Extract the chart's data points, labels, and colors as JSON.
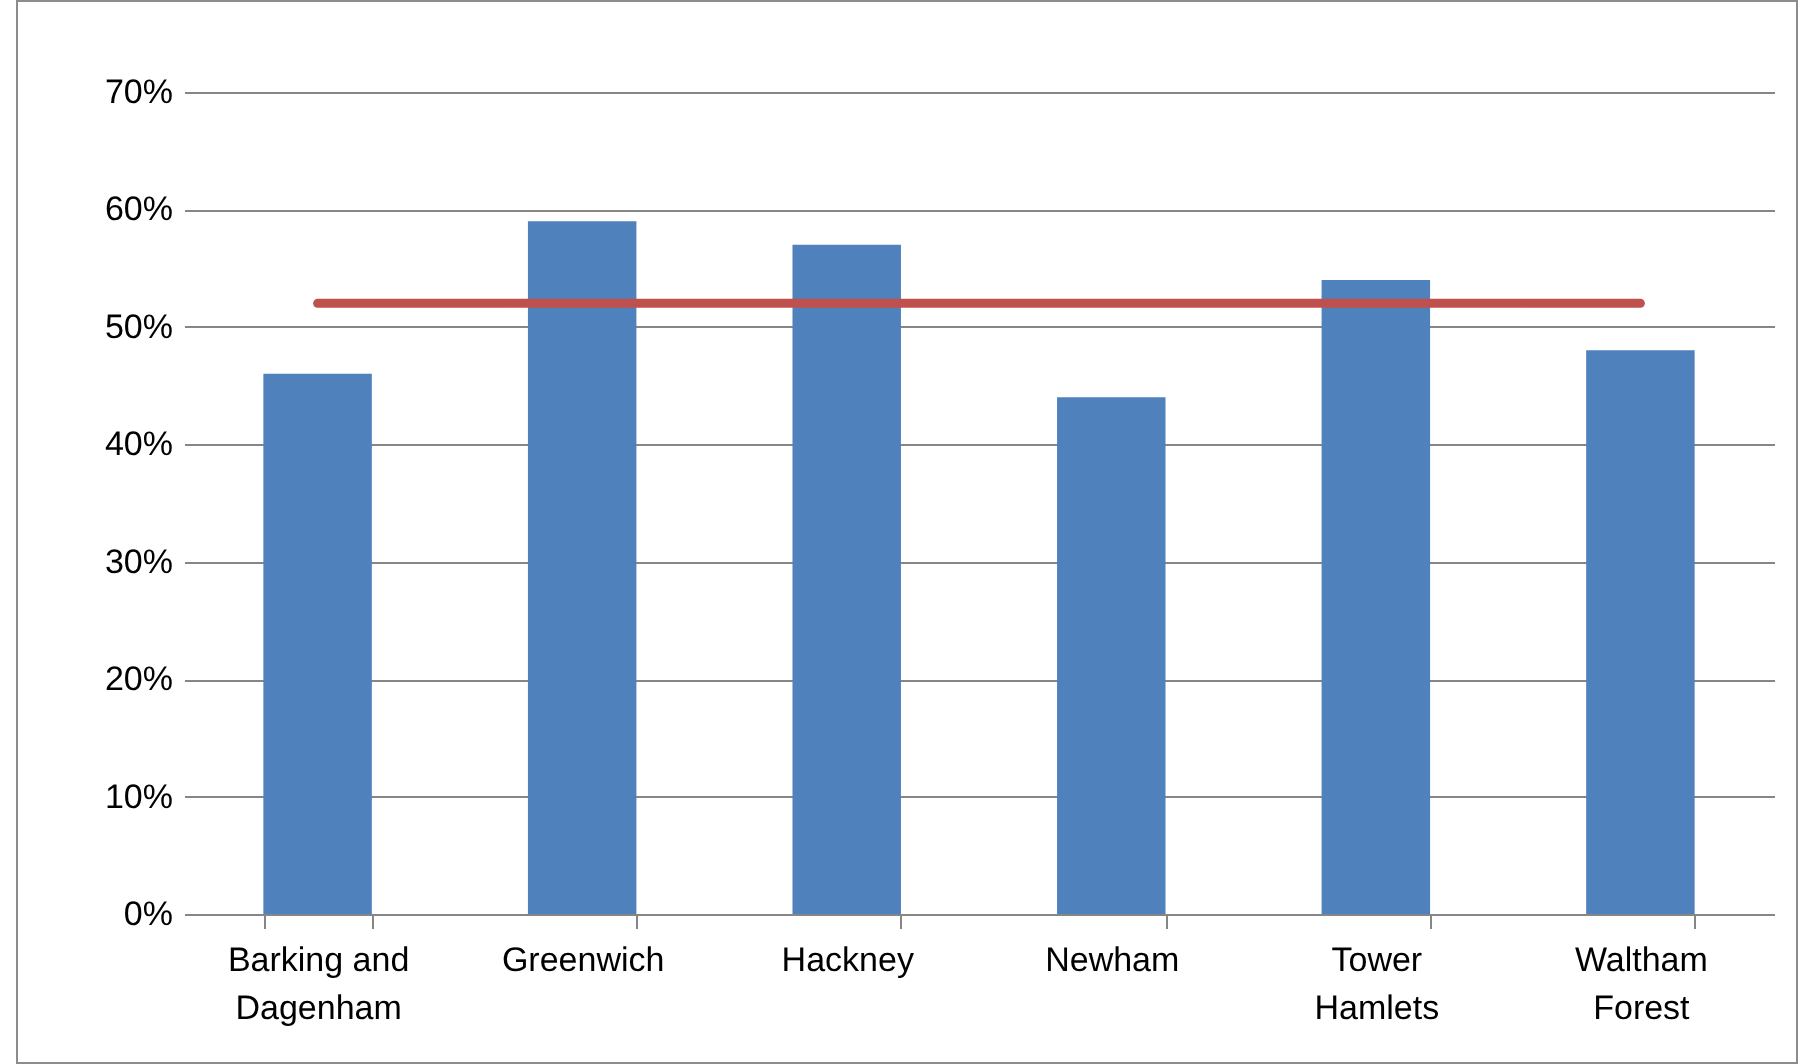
{
  "chart_data": {
    "type": "bar",
    "categories": [
      "Barking and Dagenham",
      "Greenwich",
      "Hackney",
      "Newham",
      "Tower Hamlets",
      "Waltham Forest"
    ],
    "series": [
      {
        "color": "#4f81bd",
        "values": [
          46,
          59,
          57,
          44,
          54,
          48
        ]
      },
      {
        "type": "line",
        "color": "#c0504d",
        "values": [
          52,
          52,
          52,
          52,
          52,
          52
        ]
      }
    ],
    "ylim": [
      0,
      70
    ],
    "yticks": [
      {
        "value": 0,
        "label": "0%"
      },
      {
        "value": 10,
        "label": "10%"
      },
      {
        "value": 20,
        "label": "20%"
      },
      {
        "value": 30,
        "label": "30%"
      },
      {
        "value": 40,
        "label": "40%"
      },
      {
        "value": 50,
        "label": "50%"
      },
      {
        "value": 60,
        "label": "60%"
      },
      {
        "value": 70,
        "label": "70%"
      }
    ],
    "grid": "y",
    "marker": "none",
    "line_style": "solid"
  }
}
